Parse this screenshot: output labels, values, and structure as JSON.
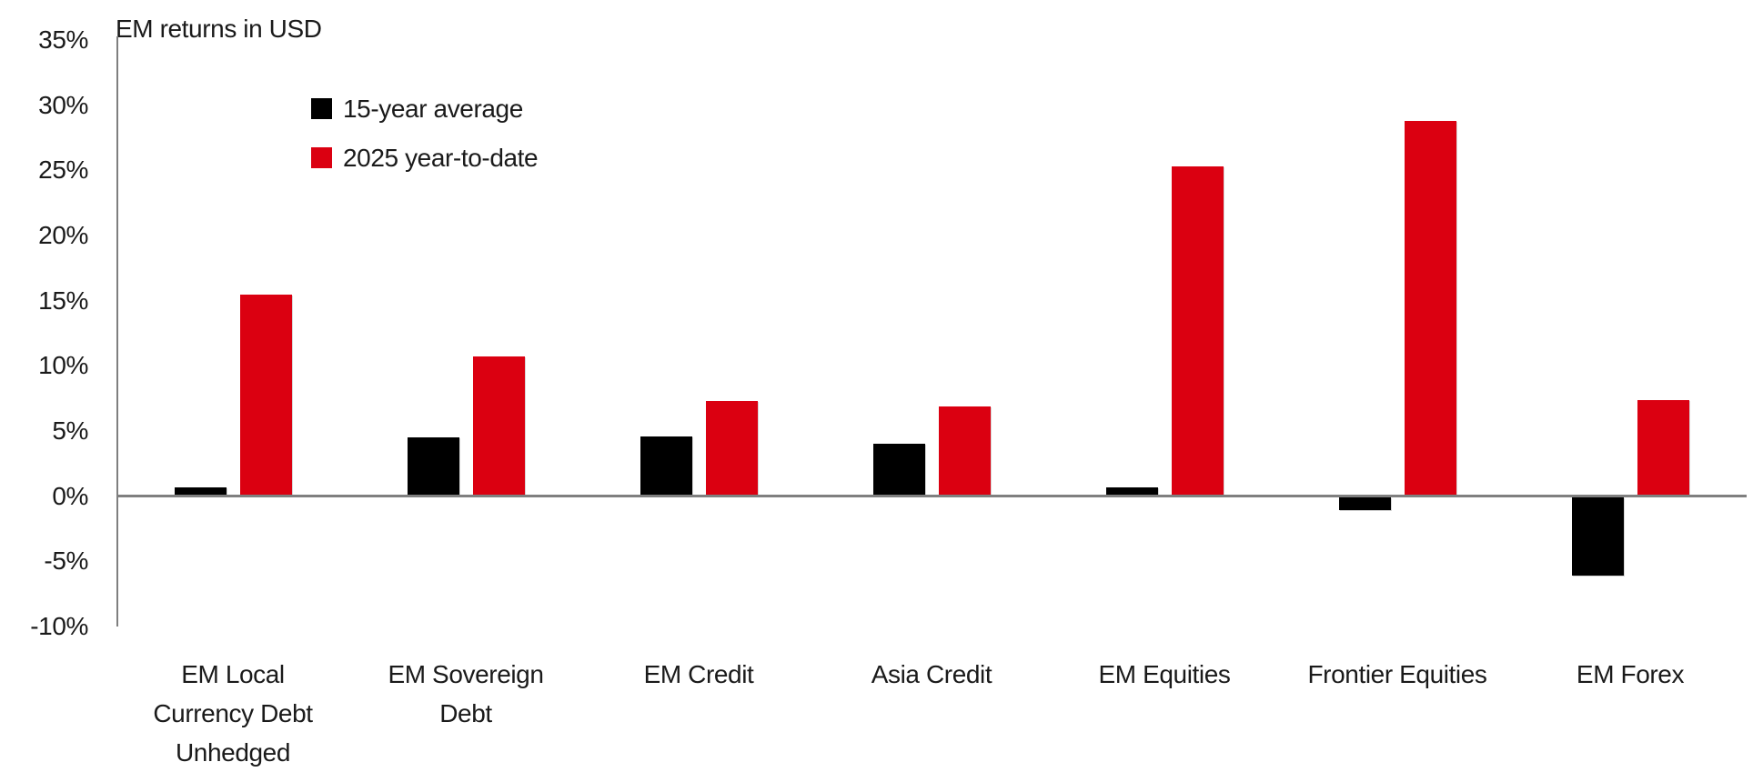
{
  "chart_data": {
    "type": "bar",
    "title": "EM returns in USD",
    "unit": "%",
    "categories": [
      "EM Local Currency Debt Unhedged",
      "EM Sovereign Debt",
      "EM Credit",
      "Asia Credit",
      "EM Equities",
      "Frontier Equities",
      "EM Forex"
    ],
    "category_label_lines": [
      [
        "EM Local",
        "Currency Debt",
        "Unhedged"
      ],
      [
        "EM Sovereign",
        "Debt"
      ],
      [
        "EM Credit"
      ],
      [
        "Asia Credit"
      ],
      [
        "EM Equities"
      ],
      [
        "Frontier Equities"
      ],
      [
        "EM Forex"
      ]
    ],
    "series": [
      {
        "name": "15-year average",
        "color": "#000000",
        "values": [
          0.7,
          4.5,
          4.6,
          4.0,
          0.7,
          -1.0,
          -6.0
        ]
      },
      {
        "name": "2025 year-to-date",
        "color": "#db0011",
        "values": [
          15.5,
          10.7,
          7.3,
          6.9,
          25.3,
          28.8,
          7.4
        ]
      }
    ],
    "ylim": [
      -10,
      35
    ],
    "ytick_values": [
      35,
      30,
      25,
      20,
      15,
      10,
      5,
      0,
      -5,
      -10
    ],
    "ytick_labels": [
      "35%",
      "30%",
      "25%",
      "20%",
      "15%",
      "10%",
      "5%",
      "0%",
      "-5%",
      "-10%"
    ],
    "grid": false,
    "legend_position": "top-inside-left",
    "axis_color": "#7f7f7f",
    "text_color": "#000000",
    "background": "#ffffff"
  }
}
